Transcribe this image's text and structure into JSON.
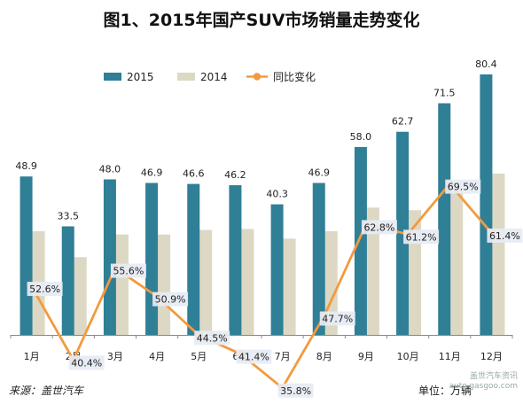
{
  "chart_data": {
    "type": "bar",
    "title": "图1、2015年国产SUV市场销量走势变化",
    "categories": [
      "1月",
      "2月",
      "3月",
      "4月",
      "5月",
      "6月",
      "7月",
      "8月",
      "9月",
      "10月",
      "11月",
      "12月"
    ],
    "series": [
      {
        "name": "2015",
        "type": "bar",
        "color": "#2f7f96",
        "values": [
          48.9,
          33.5,
          48.0,
          46.9,
          46.6,
          46.2,
          40.3,
          46.9,
          58.0,
          62.7,
          71.5,
          80.4
        ]
      },
      {
        "name": "2014",
        "type": "bar",
        "color": "#ddd8c4",
        "values": [
          32.0,
          24.0,
          31.0,
          31.0,
          32.4,
          32.7,
          29.7,
          32.0,
          39.3,
          38.5,
          44.4,
          49.8
        ]
      },
      {
        "name": "同比变化",
        "type": "line",
        "color": "#f39a3e",
        "values": [
          52.6,
          40.4,
          55.6,
          50.9,
          44.5,
          41.4,
          35.8,
          47.7,
          62.8,
          61.2,
          69.5,
          61.4
        ],
        "labels": [
          "52.6%",
          "40.4%",
          "55.6%",
          "50.9%",
          "44.5%",
          "41.4%",
          "35.8%",
          "47.7%",
          "62.8%",
          "61.2%",
          "69.5%",
          "61.4%"
        ]
      }
    ],
    "bar_labels": [
      "48.9",
      "33.5",
      "48.0",
      "46.9",
      "46.6",
      "46.2",
      "40.3",
      "46.9",
      "58.0",
      "62.7",
      "71.5",
      "80.4"
    ],
    "legend_position": "top",
    "grid": false
  },
  "footer": {
    "source": "来源：盖世汽车",
    "unit": "单位：万辆",
    "watermark_line1": "盖世汽车资讯",
    "watermark_line2": "auto.gasgoo.com"
  }
}
